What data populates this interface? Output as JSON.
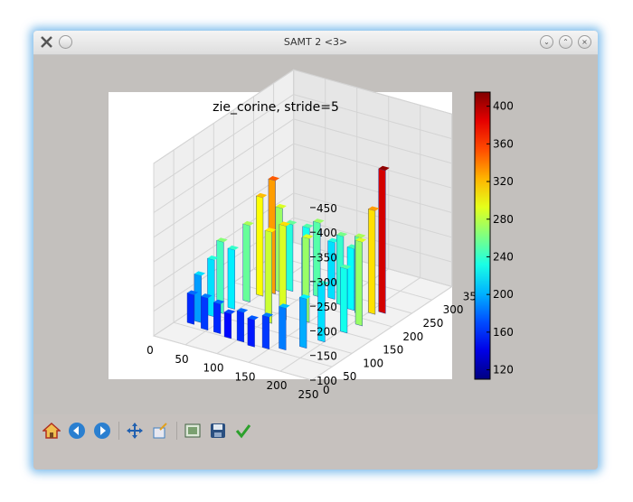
{
  "window": {
    "title": "SAMT 2 <3>"
  },
  "toolbar": {
    "tools": [
      "home-icon",
      "back-icon",
      "forward-icon",
      "pan-icon",
      "zoom-icon",
      "subplots-icon",
      "save-icon",
      "check-icon"
    ]
  },
  "chart_data": {
    "type": "surface3d",
    "title": "zie_corine,  stride=5",
    "x_ticks": [
      "0",
      "50",
      "100",
      "150",
      "200",
      "250"
    ],
    "y_ticks": [
      "0",
      "50",
      "100",
      "150",
      "200",
      "250",
      "300",
      "350"
    ],
    "z_ticks": [
      "100",
      "150",
      "200",
      "250",
      "300",
      "350",
      "400",
      "450"
    ],
    "xlim": [
      0,
      250
    ],
    "ylim": [
      0,
      350
    ],
    "zlim": [
      100,
      450
    ],
    "colorbar": {
      "ticks": [
        "120",
        "160",
        "200",
        "240",
        "280",
        "320",
        "360",
        "400"
      ],
      "range": [
        110,
        415
      ],
      "colormap": "jet"
    },
    "bars": [
      {
        "x": 15,
        "y": 60,
        "z": 160
      },
      {
        "x": 20,
        "y": 70,
        "z": 195
      },
      {
        "x": 25,
        "y": 95,
        "z": 215
      },
      {
        "x": 30,
        "y": 110,
        "z": 245
      },
      {
        "x": 35,
        "y": 130,
        "z": 220
      },
      {
        "x": 40,
        "y": 160,
        "z": 255
      },
      {
        "x": 45,
        "y": 185,
        "z": 300
      },
      {
        "x": 55,
        "y": 200,
        "z": 330
      },
      {
        "x": 60,
        "y": 210,
        "z": 270
      },
      {
        "x": 70,
        "y": 220,
        "z": 235
      },
      {
        "x": 90,
        "y": 230,
        "z": 230
      },
      {
        "x": 110,
        "y": 225,
        "z": 250
      },
      {
        "x": 130,
        "y": 230,
        "z": 215
      },
      {
        "x": 150,
        "y": 220,
        "z": 240
      },
      {
        "x": 170,
        "y": 215,
        "z": 225
      },
      {
        "x": 185,
        "y": 210,
        "z": 255
      },
      {
        "x": 200,
        "y": 220,
        "z": 310
      },
      {
        "x": 210,
        "y": 230,
        "z": 390
      },
      {
        "x": 205,
        "y": 180,
        "z": 270
      },
      {
        "x": 200,
        "y": 150,
        "z": 230
      },
      {
        "x": 190,
        "y": 110,
        "z": 215
      },
      {
        "x": 180,
        "y": 80,
        "z": 200
      },
      {
        "x": 160,
        "y": 60,
        "z": 185
      },
      {
        "x": 140,
        "y": 50,
        "z": 165
      },
      {
        "x": 120,
        "y": 45,
        "z": 155
      },
      {
        "x": 100,
        "y": 50,
        "z": 160
      },
      {
        "x": 80,
        "y": 50,
        "z": 150
      },
      {
        "x": 60,
        "y": 55,
        "z": 160
      },
      {
        "x": 40,
        "y": 55,
        "z": 165
      },
      {
        "x": 100,
        "y": 120,
        "z": 285
      },
      {
        "x": 110,
        "y": 140,
        "z": 290
      },
      {
        "x": 140,
        "y": 150,
        "z": 270
      },
      {
        "x": 120,
        "y": 180,
        "z": 245
      }
    ]
  }
}
